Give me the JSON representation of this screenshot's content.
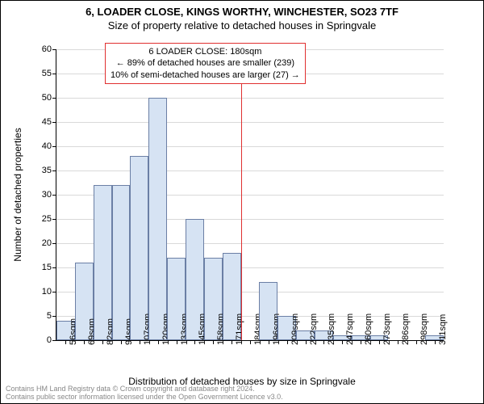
{
  "titles": {
    "line1": "6, LOADER CLOSE, KINGS WORTHY, WINCHESTER, SO23 7TF",
    "line2": "Size of property relative to detached houses in Springvale"
  },
  "axes": {
    "y_title": "Number of detached properties",
    "x_title": "Distribution of detached houses by size in Springvale",
    "ylim": [
      0,
      60
    ],
    "ytick_step": 5,
    "y_ticks": [
      0,
      5,
      10,
      15,
      20,
      25,
      30,
      35,
      40,
      45,
      50,
      55,
      60
    ]
  },
  "chart": {
    "type": "histogram",
    "bar_fill": "#d6e3f3",
    "bar_border": "#6b7fa5",
    "grid_color": "#d9d9d9",
    "background": "#ffffff",
    "redline_color": "#e03030",
    "redline_x_index": 10,
    "x_labels": [
      "56sqm",
      "69sqm",
      "82sqm",
      "94sqm",
      "107sqm",
      "120sqm",
      "133sqm",
      "145sqm",
      "158sqm",
      "171sqm",
      "184sqm",
      "196sqm",
      "209sqm",
      "222sqm",
      "235sqm",
      "247sqm",
      "260sqm",
      "273sqm",
      "286sqm",
      "298sqm",
      "311sqm"
    ],
    "values": [
      4,
      16,
      32,
      32,
      38,
      50,
      17,
      25,
      17,
      18,
      0,
      12,
      5,
      2,
      2,
      1,
      1,
      1,
      0,
      0,
      1
    ]
  },
  "annotation": {
    "line1": "6 LOADER CLOSE: 180sqm",
    "line2": "← 89% of detached houses are smaller (239)",
    "line3": "10% of semi-detached houses are larger (27) →"
  },
  "footer": {
    "line1": "Contains HM Land Registry data © Crown copyright and database right 2024.",
    "line2": "Contains public sector information licensed under the Open Government Licence v3.0."
  }
}
